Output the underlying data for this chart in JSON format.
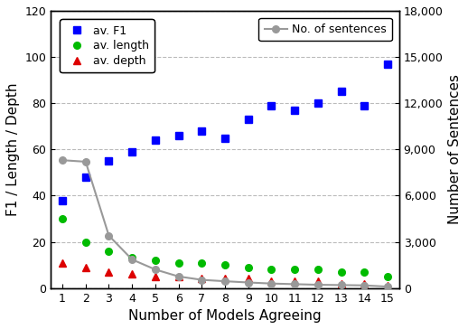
{
  "x": [
    1,
    2,
    3,
    4,
    5,
    6,
    7,
    8,
    9,
    10,
    11,
    12,
    13,
    14,
    15
  ],
  "av_f1": [
    38,
    48,
    55,
    59,
    64,
    66,
    68,
    65,
    73,
    79,
    77,
    80,
    85,
    79,
    97
  ],
  "av_length": [
    30,
    20,
    16,
    13,
    12,
    11,
    11,
    10,
    9,
    8,
    8,
    8,
    7,
    7,
    5
  ],
  "av_depth": [
    11,
    9,
    7,
    6,
    5,
    5,
    4,
    4,
    4,
    3,
    3,
    3,
    2,
    2,
    1
  ],
  "no_sentences": [
    8300,
    8200,
    3400,
    1850,
    1200,
    750,
    530,
    440,
    360,
    290,
    250,
    210,
    190,
    170,
    90
  ],
  "ylim_left": [
    0,
    120
  ],
  "ylim_right": [
    0,
    18000
  ],
  "yticks_left": [
    0,
    20,
    40,
    60,
    80,
    100,
    120
  ],
  "yticks_right": [
    0,
    3000,
    6000,
    9000,
    12000,
    15000,
    18000
  ],
  "xlabel": "Number of Models Agreeing",
  "ylabel_left": "F1 / Length / Depth",
  "ylabel_right": "Number of Sentences",
  "legend1_labels": [
    "av. F1",
    "av. length",
    "av. depth"
  ],
  "legend2_label": "No. of sentences",
  "color_f1": "#0000ff",
  "color_length": "#00bb00",
  "color_depth": "#dd0000",
  "color_sentences": "#999999",
  "bg_color": "#ffffff",
  "grid_color": "#bbbbbb",
  "figsize": [
    5.18,
    3.64
  ],
  "dpi": 100
}
